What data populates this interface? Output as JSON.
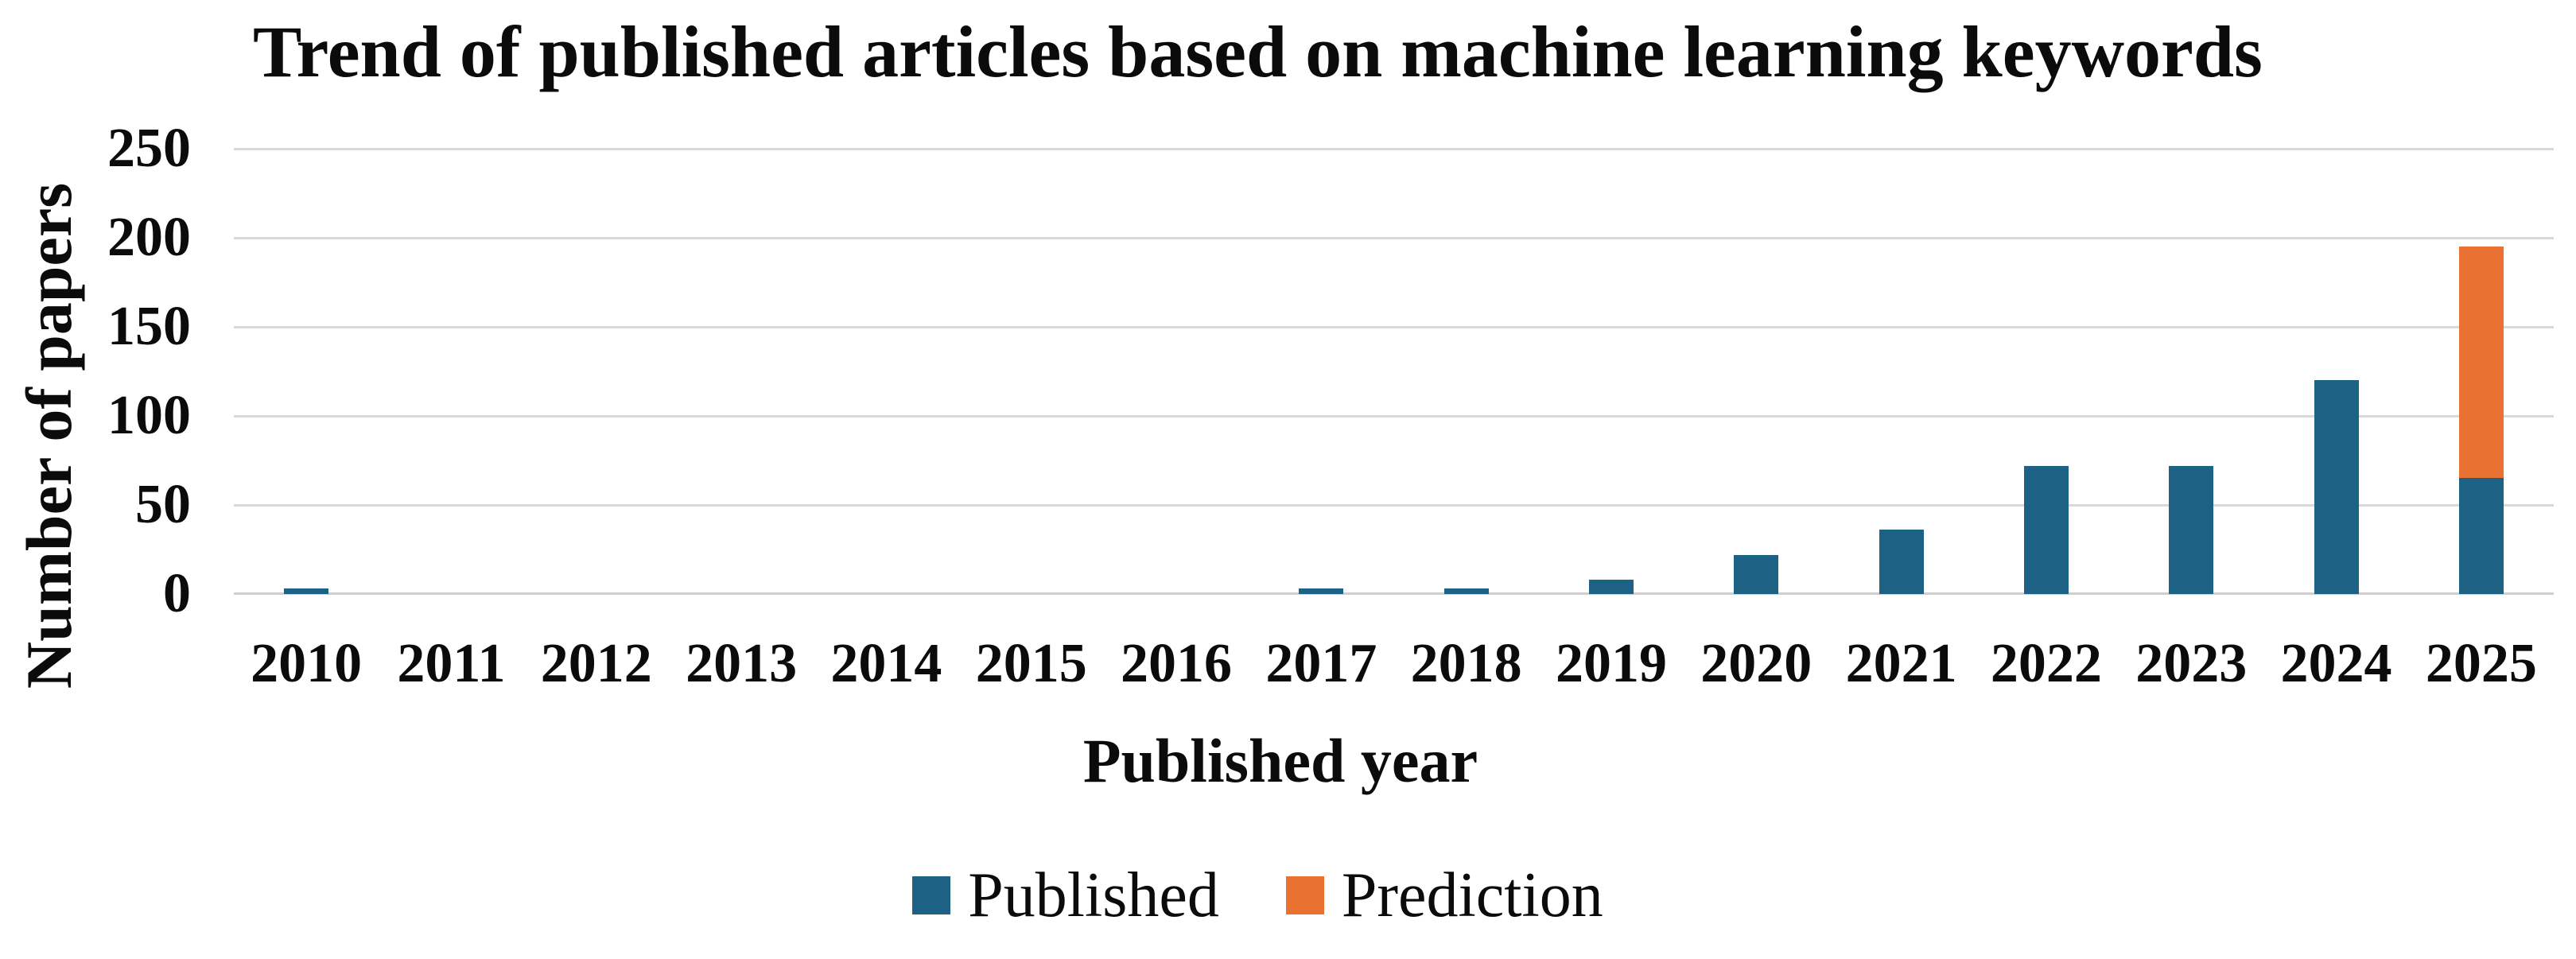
{
  "chart_data": {
    "type": "bar",
    "stacked": true,
    "title": "Trend of published articles based on machine learning keywords",
    "xlabel": "Published year",
    "ylabel": "Number of papers",
    "categories": [
      "2010",
      "2011",
      "2012",
      "2013",
      "2014",
      "2015",
      "2016",
      "2017",
      "2018",
      "2019",
      "2020",
      "2021",
      "2022",
      "2023",
      "2024",
      "2025"
    ],
    "series": [
      {
        "name": "Published",
        "color": "#1D6285",
        "values": [
          3,
          0,
          0,
          0,
          0,
          0,
          0,
          3,
          3,
          8,
          22,
          36,
          72,
          72,
          120,
          65
        ]
      },
      {
        "name": "Prediction",
        "color": "#E97132",
        "values": [
          0,
          0,
          0,
          0,
          0,
          0,
          0,
          0,
          0,
          0,
          0,
          0,
          0,
          0,
          0,
          130
        ]
      }
    ],
    "ylim": [
      0,
      250
    ],
    "yticks": [
      0,
      50,
      100,
      150,
      200,
      250
    ],
    "grid": true,
    "legend_position": "bottom",
    "gridline_color": "#D9D9D9",
    "axis_line_color": "#CFCFCF",
    "background_color": "#FFFFFF",
    "text_color": "#000000"
  }
}
